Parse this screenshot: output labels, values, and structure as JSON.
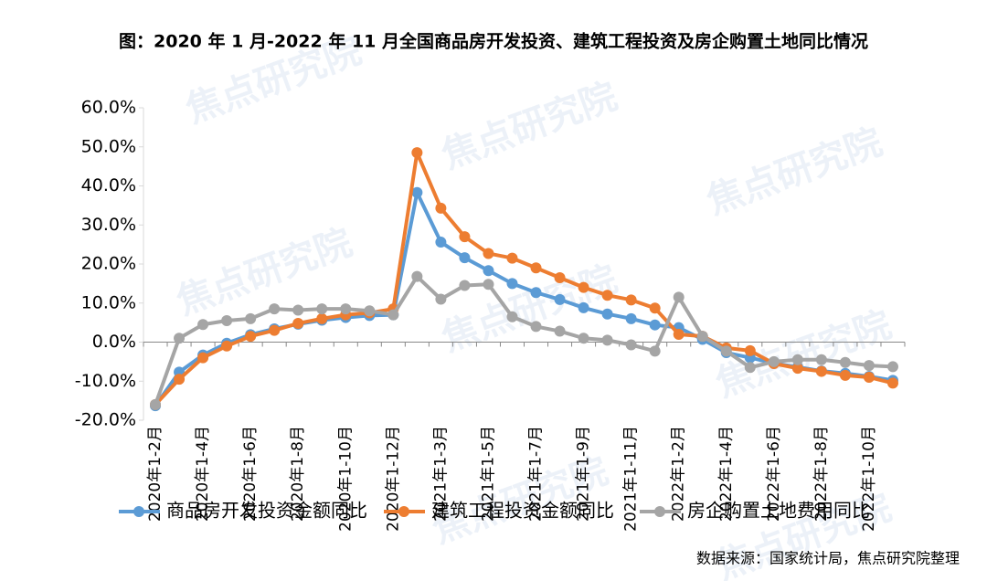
{
  "chart_data": {
    "type": "line",
    "title": "图：2020 年 1 月-2022 年 11 月全国商品房开发投资、建筑工程投资及房企购置土地同比情况",
    "source": "数据来源：国家统计局，焦点研究院整理",
    "watermark": "焦点研究院",
    "categories": [
      "2020年1-2月",
      null,
      "2020年1-4月",
      null,
      "2020年1-6月",
      null,
      "2020年1-8月",
      null,
      "2020年1-10月",
      null,
      "2020年1-12月",
      null,
      "2021年1-3月",
      null,
      "2021年1-5月",
      null,
      "2021年1-7月",
      null,
      "2021年1-9月",
      null,
      "2021年1-11月",
      null,
      "2022年1-2月",
      null,
      "2022年1-4月",
      null,
      "2022年1-6月",
      null,
      "2022年1-8月",
      null,
      "2022年1-10月",
      null
    ],
    "series": [
      {
        "name": "商品房开发投资金额同比",
        "color": "#5b9bd5",
        "values": [
          -16.3,
          -7.7,
          -3.3,
          -0.3,
          1.9,
          3.4,
          4.6,
          5.6,
          6.3,
          6.8,
          7.0,
          38.3,
          25.6,
          21.6,
          18.3,
          15.0,
          12.7,
          10.9,
          8.8,
          7.2,
          6.0,
          4.4,
          3.7,
          0.7,
          -2.7,
          -4.0,
          -5.4,
          -6.4,
          -7.4,
          -8.0,
          -8.8,
          -9.8
        ]
      },
      {
        "name": "建筑工程投资金额同比",
        "color": "#ed7d31",
        "values": [
          -16.0,
          -9.5,
          -4.0,
          -1.0,
          1.5,
          3.0,
          4.8,
          6.0,
          7.0,
          7.5,
          8.5,
          48.5,
          34.3,
          27.0,
          22.7,
          21.5,
          19.0,
          16.5,
          14.0,
          12.0,
          10.8,
          8.7,
          2.0,
          1.5,
          -1.5,
          -2.2,
          -5.5,
          -6.7,
          -7.5,
          -8.5,
          -9.0,
          -10.5
        ]
      },
      {
        "name": "房企购置土地费用同比",
        "color": "#a5a5a5",
        "values": [
          -16.0,
          1.0,
          4.5,
          5.5,
          6.0,
          8.5,
          8.2,
          8.5,
          8.5,
          8.0,
          7.0,
          16.8,
          11.0,
          14.5,
          14.8,
          6.5,
          4.0,
          2.8,
          1.0,
          0.5,
          -0.7,
          -2.3,
          11.5,
          1.5,
          -2.3,
          -6.5,
          -5.0,
          -4.5,
          -4.5,
          -5.2,
          -6.0,
          -6.3
        ]
      }
    ],
    "ylim": [
      -20,
      60
    ],
    "yticks": [
      {
        "value": -20,
        "label": "-20.0%"
      },
      {
        "value": -10,
        "label": "-10.0%"
      },
      {
        "value": 0,
        "label": "0.0%"
      },
      {
        "value": 10,
        "label": "10.0%"
      },
      {
        "value": 20,
        "label": "20.0%"
      },
      {
        "value": 30,
        "label": "30.0%"
      },
      {
        "value": 40,
        "label": "40.0%"
      },
      {
        "value": 50,
        "label": "50.0%"
      },
      {
        "value": 60,
        "label": "60.0%"
      }
    ],
    "grid": false,
    "legend": "bottom"
  }
}
